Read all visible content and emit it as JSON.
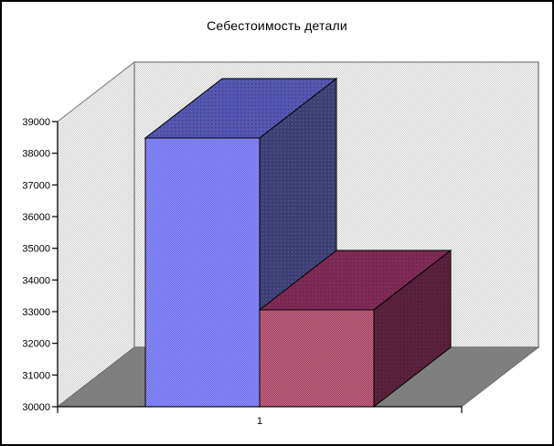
{
  "window": {
    "background": "#ffffff",
    "border_color": "#000000"
  },
  "chart_data": {
    "type": "bar",
    "view": "3d-column",
    "title": "Себестоимость детали",
    "categories": [
      "1"
    ],
    "series": [
      {
        "id": "series-1",
        "value": 38480
      },
      {
        "id": "series-2",
        "value": 33060
      }
    ],
    "ylim": [
      30000,
      39000
    ],
    "ytick_step": 1000,
    "yticklabels": [
      "30000",
      "31000",
      "32000",
      "33000",
      "34000",
      "35000",
      "36000",
      "37000",
      "38000",
      "39000"
    ],
    "xlabel": "",
    "ylabel": "",
    "legend": "none",
    "gridlines": false
  },
  "colors": {
    "series1": {
      "front_light": "#9a9afa",
      "front_dark": "#6464ea",
      "top": "#5557b2",
      "top_dot": "#3c3c7e",
      "side": "#3d3f74",
      "side_dot": "#5a5c90"
    },
    "series2": {
      "front_light": "#cd7884",
      "front_dark": "#93305f",
      "top": "#7e2b55",
      "top_dot": "#61213f",
      "side": "#56203a",
      "side_dot": "#6e2849"
    },
    "wall": {
      "fill_light": "#ffffff",
      "fill_dark": "#c9c9c9",
      "border": "#909090"
    },
    "floor": "#7f7f7f",
    "floor_edge": "#6e6e6e",
    "axis": "#000000",
    "text": "#000000"
  }
}
